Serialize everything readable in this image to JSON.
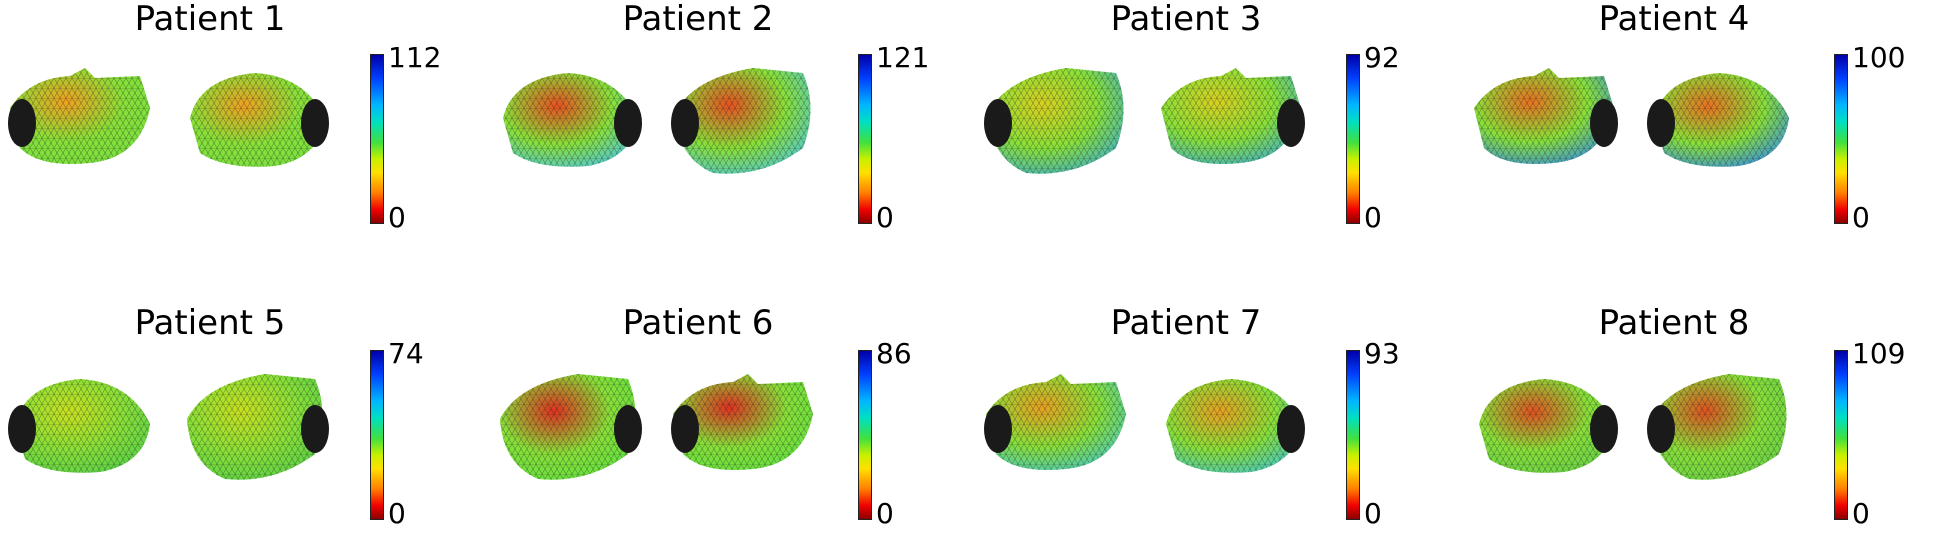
{
  "panels": [
    {
      "title": "Patient 1",
      "max": "112",
      "min": "0",
      "hot": "#f0a020",
      "cool": "#78e040"
    },
    {
      "title": "Patient 2",
      "max": "121",
      "min": "0",
      "hot": "#e85020",
      "cool": "#50c8d8"
    },
    {
      "title": "Patient 3",
      "max": "92",
      "min": "0",
      "hot": "#d8d020",
      "cool": "#40b0c8"
    },
    {
      "title": "Patient 4",
      "max": "100",
      "min": "0",
      "hot": "#e87020",
      "cool": "#3890e0"
    },
    {
      "title": "Patient 5",
      "max": "74",
      "min": "0",
      "hot": "#c8e020",
      "cool": "#58d048"
    },
    {
      "title": "Patient 6",
      "max": "86",
      "min": "0",
      "hot": "#e03020",
      "cool": "#60e040"
    },
    {
      "title": "Patient 7",
      "max": "93",
      "min": "0",
      "hot": "#e8a020",
      "cool": "#48c8c0"
    },
    {
      "title": "Patient 8",
      "max": "109",
      "min": "0",
      "hot": "#e05020",
      "cool": "#68d048"
    }
  ]
}
